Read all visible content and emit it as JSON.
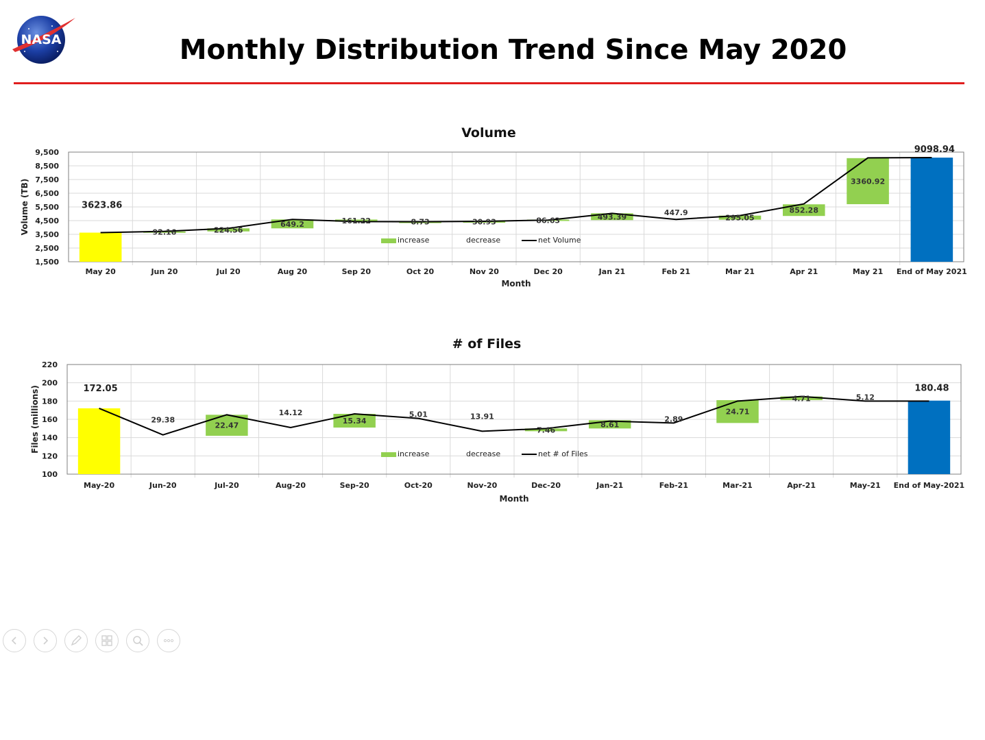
{
  "page": {
    "title": "Monthly Distribution Trend Since May 2020",
    "logo_text": "NASA"
  },
  "colors": {
    "start_bar": "#ffff00",
    "end_bar": "#0070c0",
    "increase": "#92d050",
    "line": "#000000",
    "grid": "#d9d9d9",
    "title_rule": "#e01e1e"
  },
  "chart_data": [
    {
      "type": "bar",
      "subtype": "waterfall",
      "title": "Volume",
      "xlabel": "Month",
      "ylabel": "Volume (TB)",
      "ylim": [
        1500,
        9500
      ],
      "yticks": [
        "1,500",
        "2,500",
        "3,500",
        "4,500",
        "5,500",
        "6,500",
        "7,500",
        "8,500",
        "9,500"
      ],
      "ytick_values": [
        1500,
        2500,
        3500,
        4500,
        5500,
        6500,
        7500,
        8500,
        9500
      ],
      "grid": true,
      "legend_position": "center",
      "legend": [
        "increase",
        "decrease",
        "net Volume"
      ],
      "categories": [
        "May 20",
        "Jun 20",
        "Jul 20",
        "Aug 20",
        "Sep 20",
        "Oct 20",
        "Nov 20",
        "Dec 20",
        "Jan 21",
        "Feb 21",
        "Mar 21",
        "Apr 21",
        "May 21",
        "End of May 2021"
      ],
      "start_value": 3623.86,
      "end_value": 9098.94,
      "increase_labels": [
        "",
        "92.16",
        "224.56",
        "649.2",
        "161.22",
        "8.73",
        "30.93",
        "86.63",
        "493.39",
        "447.9",
        "295.05",
        "852.28",
        "3360.92",
        ""
      ],
      "bars": [
        {
          "low": 1500,
          "high": 3623.86
        },
        {
          "low": 3620,
          "high": 3712
        },
        {
          "low": 3712,
          "high": 3936
        },
        {
          "low": 3936,
          "high": 4585
        },
        {
          "low": 4420,
          "high": 4580
        },
        {
          "low": 4410,
          "high": 4420
        },
        {
          "low": 4418,
          "high": 4450
        },
        {
          "low": 4490,
          "high": 4575
        },
        {
          "low": 4540,
          "high": 5035
        },
        null,
        {
          "low": 4570,
          "high": 4865
        },
        {
          "low": 4840,
          "high": 5690
        },
        {
          "low": 5700,
          "high": 9060
        },
        {
          "low": 1500,
          "high": 9098.94
        }
      ],
      "net_line": [
        3623.86,
        3716,
        3940,
        4590,
        4430,
        4420,
        4450,
        4540,
        5030,
        4590,
        4870,
        5720,
        9080,
        9098.94
      ]
    },
    {
      "type": "bar",
      "subtype": "waterfall",
      "title": "# of Files",
      "xlabel": "Month",
      "ylabel": "Files (millions)",
      "ylim": [
        100,
        220
      ],
      "yticks": [
        "100",
        "120",
        "140",
        "160",
        "180",
        "200",
        "220"
      ],
      "ytick_values": [
        100,
        120,
        140,
        160,
        180,
        200,
        220
      ],
      "grid": true,
      "legend_position": "center",
      "legend": [
        "increase",
        "decrease",
        "net # of Files"
      ],
      "categories": [
        "May-20",
        "Jun-20",
        "Jul-20",
        "Aug-20",
        "Sep-20",
        "Oct-20",
        "Nov-20",
        "Dec-20",
        "Jan-21",
        "Feb-21",
        "Mar-21",
        "Apr-21",
        "May-21",
        "End of May-2021"
      ],
      "start_value": 172.05,
      "end_value": 180.48,
      "increase_labels": [
        "",
        "29.38",
        "22.47",
        "14.12",
        "15.34",
        "5.01",
        "13.91",
        "7.46",
        "8.61",
        "2.89",
        "24.71",
        "4.71",
        "5.12",
        ""
      ],
      "bars": [
        {
          "low": 100,
          "high": 172.05
        },
        null,
        {
          "low": 142,
          "high": 165
        },
        null,
        {
          "low": 151,
          "high": 166
        },
        null,
        null,
        {
          "low": 147,
          "high": 150
        },
        {
          "low": 150,
          "high": 159
        },
        null,
        {
          "low": 156,
          "high": 181
        },
        {
          "low": 181,
          "high": 185
        },
        null,
        {
          "low": 100,
          "high": 180.48
        }
      ],
      "net_line": [
        172.05,
        143,
        165,
        151,
        166,
        161,
        147,
        150,
        158,
        156,
        180,
        185,
        180,
        180
      ]
    }
  ]
}
